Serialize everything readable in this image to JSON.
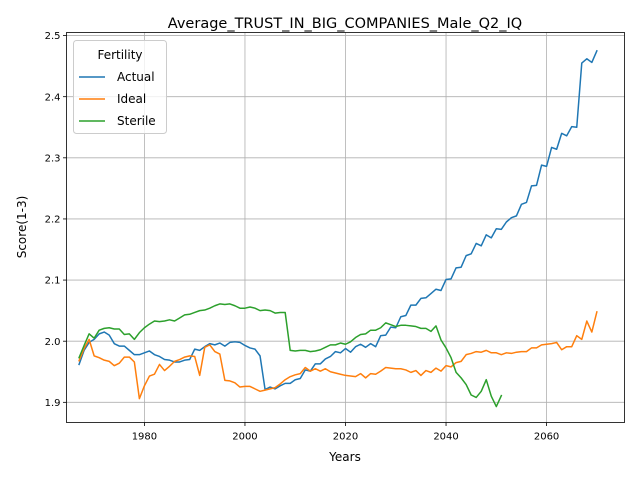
{
  "chart_data": {
    "type": "line",
    "title": "Average_TRUST_IN_BIG_COMPANIES_Male_Q2_IQ",
    "xlabel": "Years",
    "ylabel": "Score(1-3)",
    "xlim": [
      1964.5,
      2075.5
    ],
    "ylim": [
      1.867,
      2.505
    ],
    "xticks": [
      1980,
      2000,
      2020,
      2040,
      2060
    ],
    "yticks": [
      1.9,
      2.0,
      2.1,
      2.2,
      2.3,
      2.4,
      2.5
    ],
    "xtick_labels": [
      "1980",
      "2000",
      "2020",
      "2040",
      "2060"
    ],
    "ytick_labels": [
      "1.9",
      "2.0",
      "2.1",
      "2.2",
      "2.3",
      "2.4",
      "2.5"
    ],
    "grid": true,
    "legend": {
      "title": "Fertility",
      "position": "upper-left"
    },
    "series": [
      {
        "name": "Actual",
        "color": "#1f77b4",
        "x": [
          1967,
          1968,
          1969,
          1970,
          1971,
          1972,
          1973,
          1974,
          1975,
          1976,
          1977,
          1978,
          1979,
          1980,
          1981,
          1982,
          1983,
          1984,
          1985,
          1986,
          1987,
          1988,
          1989,
          1990,
          1991,
          1992,
          1993,
          1994,
          1995,
          1996,
          1997,
          1998,
          1999,
          2000,
          2001,
          2002,
          2003,
          2004,
          2005,
          2006,
          2007,
          2008,
          2009,
          2010,
          2011,
          2012,
          2013,
          2014,
          2015,
          2016,
          2017,
          2018,
          2019,
          2020,
          2021,
          2022,
          2023,
          2024,
          2025,
          2026,
          2027,
          2028,
          2029,
          2030,
          2031,
          2032,
          2033,
          2034,
          2035,
          2036,
          2037,
          2038,
          2039,
          2040,
          2041,
          2042,
          2043,
          2044,
          2045,
          2046,
          2047,
          2048,
          2049,
          2050,
          2051,
          2052,
          2053,
          2054,
          2055,
          2056,
          2057,
          2058,
          2059,
          2060,
          2061,
          2062,
          2063,
          2064,
          2065,
          2066,
          2067,
          2068,
          2069,
          2070
        ],
        "y": [
          1.962,
          1.985,
          1.998,
          2.003,
          2.012,
          2.015,
          2.01,
          1.996,
          1.992,
          1.992,
          1.985,
          1.978,
          1.978,
          1.981,
          1.984,
          1.978,
          1.975,
          1.97,
          1.969,
          1.966,
          1.966,
          1.969,
          1.97,
          1.987,
          1.985,
          1.991,
          1.996,
          1.994,
          1.997,
          1.992,
          1.998,
          1.999,
          1.998,
          1.993,
          1.989,
          1.987,
          1.976,
          1.921,
          1.925,
          1.922,
          1.927,
          1.931,
          1.931,
          1.937,
          1.939,
          1.953,
          1.951,
          1.963,
          1.963,
          1.971,
          1.975,
          1.983,
          1.981,
          1.988,
          1.982,
          1.991,
          1.995,
          1.99,
          1.996,
          1.991,
          2.009,
          2.01,
          2.023,
          2.022,
          2.04,
          2.042,
          2.059,
          2.059,
          2.07,
          2.071,
          2.078,
          2.085,
          2.083,
          2.101,
          2.102,
          2.12,
          2.121,
          2.14,
          2.143,
          2.16,
          2.156,
          2.174,
          2.169,
          2.184,
          2.183,
          2.195,
          2.202,
          2.205,
          2.224,
          2.227,
          2.254,
          2.255,
          2.288,
          2.286,
          2.317,
          2.314,
          2.34,
          2.336,
          2.351,
          2.35,
          2.455,
          2.462,
          2.456,
          2.475
        ]
      },
      {
        "name": "Ideal",
        "color": "#ff7f0e",
        "x": [
          1967,
          1968,
          1969,
          1970,
          1971,
          1972,
          1973,
          1974,
          1975,
          1976,
          1977,
          1978,
          1979,
          1980,
          1981,
          1982,
          1983,
          1984,
          1985,
          1986,
          1987,
          1988,
          1989,
          1990,
          1991,
          1992,
          1993,
          1994,
          1995,
          1996,
          1997,
          1998,
          1999,
          2000,
          2001,
          2002,
          2003,
          2004,
          2005,
          2006,
          2007,
          2008,
          2009,
          2010,
          2011,
          2012,
          2013,
          2014,
          2015,
          2016,
          2017,
          2018,
          2019,
          2020,
          2021,
          2022,
          2023,
          2024,
          2025,
          2026,
          2027,
          2028,
          2029,
          2030,
          2031,
          2032,
          2033,
          2034,
          2035,
          2036,
          2037,
          2038,
          2039,
          2040,
          2041,
          2042,
          2043,
          2044,
          2045,
          2046,
          2047,
          2048,
          2049,
          2050,
          2051,
          2052,
          2053,
          2054,
          2055,
          2056,
          2057,
          2058,
          2059,
          2060,
          2061,
          2062,
          2063,
          2064,
          2065,
          2066,
          2067,
          2068,
          2069,
          2070
        ],
        "y": [
          1.968,
          1.988,
          2.003,
          1.976,
          1.973,
          1.969,
          1.967,
          1.96,
          1.964,
          1.974,
          1.974,
          1.966,
          1.906,
          1.927,
          1.943,
          1.946,
          1.962,
          1.952,
          1.959,
          1.967,
          1.97,
          1.974,
          1.976,
          1.975,
          1.944,
          1.99,
          1.994,
          1.983,
          1.979,
          1.936,
          1.935,
          1.932,
          1.925,
          1.926,
          1.926,
          1.922,
          1.918,
          1.92,
          1.922,
          1.924,
          1.93,
          1.937,
          1.942,
          1.945,
          1.947,
          1.957,
          1.951,
          1.955,
          1.951,
          1.955,
          1.95,
          1.948,
          1.946,
          1.944,
          1.943,
          1.942,
          1.947,
          1.94,
          1.947,
          1.946,
          1.951,
          1.957,
          1.956,
          1.955,
          1.955,
          1.953,
          1.949,
          1.952,
          1.944,
          1.952,
          1.949,
          1.956,
          1.951,
          1.96,
          1.958,
          1.965,
          1.967,
          1.978,
          1.98,
          1.983,
          1.982,
          1.985,
          1.981,
          1.981,
          1.978,
          1.981,
          1.98,
          1.982,
          1.983,
          1.983,
          1.989,
          1.989,
          1.994,
          1.995,
          1.996,
          1.998,
          1.986,
          1.991,
          1.991,
          2.009,
          2.003,
          2.033,
          2.015,
          2.048
        ]
      },
      {
        "name": "Sterile",
        "color": "#2ca02c",
        "x": [
          1967,
          1968,
          1969,
          1970,
          1971,
          1972,
          1973,
          1974,
          1975,
          1976,
          1977,
          1978,
          1979,
          1980,
          1981,
          1982,
          1983,
          1984,
          1985,
          1986,
          1987,
          1988,
          1989,
          1990,
          1991,
          1992,
          1993,
          1994,
          1995,
          1996,
          1997,
          1998,
          1999,
          2000,
          2001,
          2002,
          2003,
          2004,
          2005,
          2006,
          2007,
          2008,
          2009,
          2010,
          2011,
          2012,
          2013,
          2014,
          2015,
          2016,
          2017,
          2018,
          2019,
          2020,
          2021,
          2022,
          2023,
          2024,
          2025,
          2026,
          2027,
          2028,
          2029,
          2030,
          2031,
          2032,
          2033,
          2034,
          2035,
          2036,
          2037,
          2038,
          2039,
          2040,
          2041,
          2042,
          2043,
          2044,
          2045,
          2046,
          2047,
          2048,
          2049,
          2050,
          2051
        ],
        "y": [
          1.973,
          1.993,
          2.012,
          2.005,
          2.018,
          2.021,
          2.022,
          2.02,
          2.02,
          2.011,
          2.012,
          2.003,
          2.014,
          2.022,
          2.028,
          2.033,
          2.032,
          2.033,
          2.035,
          2.033,
          2.038,
          2.043,
          2.044,
          2.047,
          2.05,
          2.051,
          2.054,
          2.058,
          2.061,
          2.06,
          2.061,
          2.058,
          2.054,
          2.054,
          2.056,
          2.054,
          2.05,
          2.051,
          2.05,
          2.046,
          2.047,
          2.047,
          1.985,
          1.984,
          1.985,
          1.985,
          1.983,
          1.984,
          1.986,
          1.99,
          1.994,
          1.994,
          1.997,
          1.995,
          1.999,
          2.006,
          2.011,
          2.012,
          2.018,
          2.018,
          2.022,
          2.03,
          2.027,
          2.024,
          2.026,
          2.026,
          2.025,
          2.024,
          2.021,
          2.021,
          2.016,
          2.025,
          2.002,
          1.989,
          1.973,
          1.949,
          1.94,
          1.929,
          1.912,
          1.908,
          1.918,
          1.937,
          1.91,
          1.893,
          1.911
        ]
      }
    ]
  }
}
